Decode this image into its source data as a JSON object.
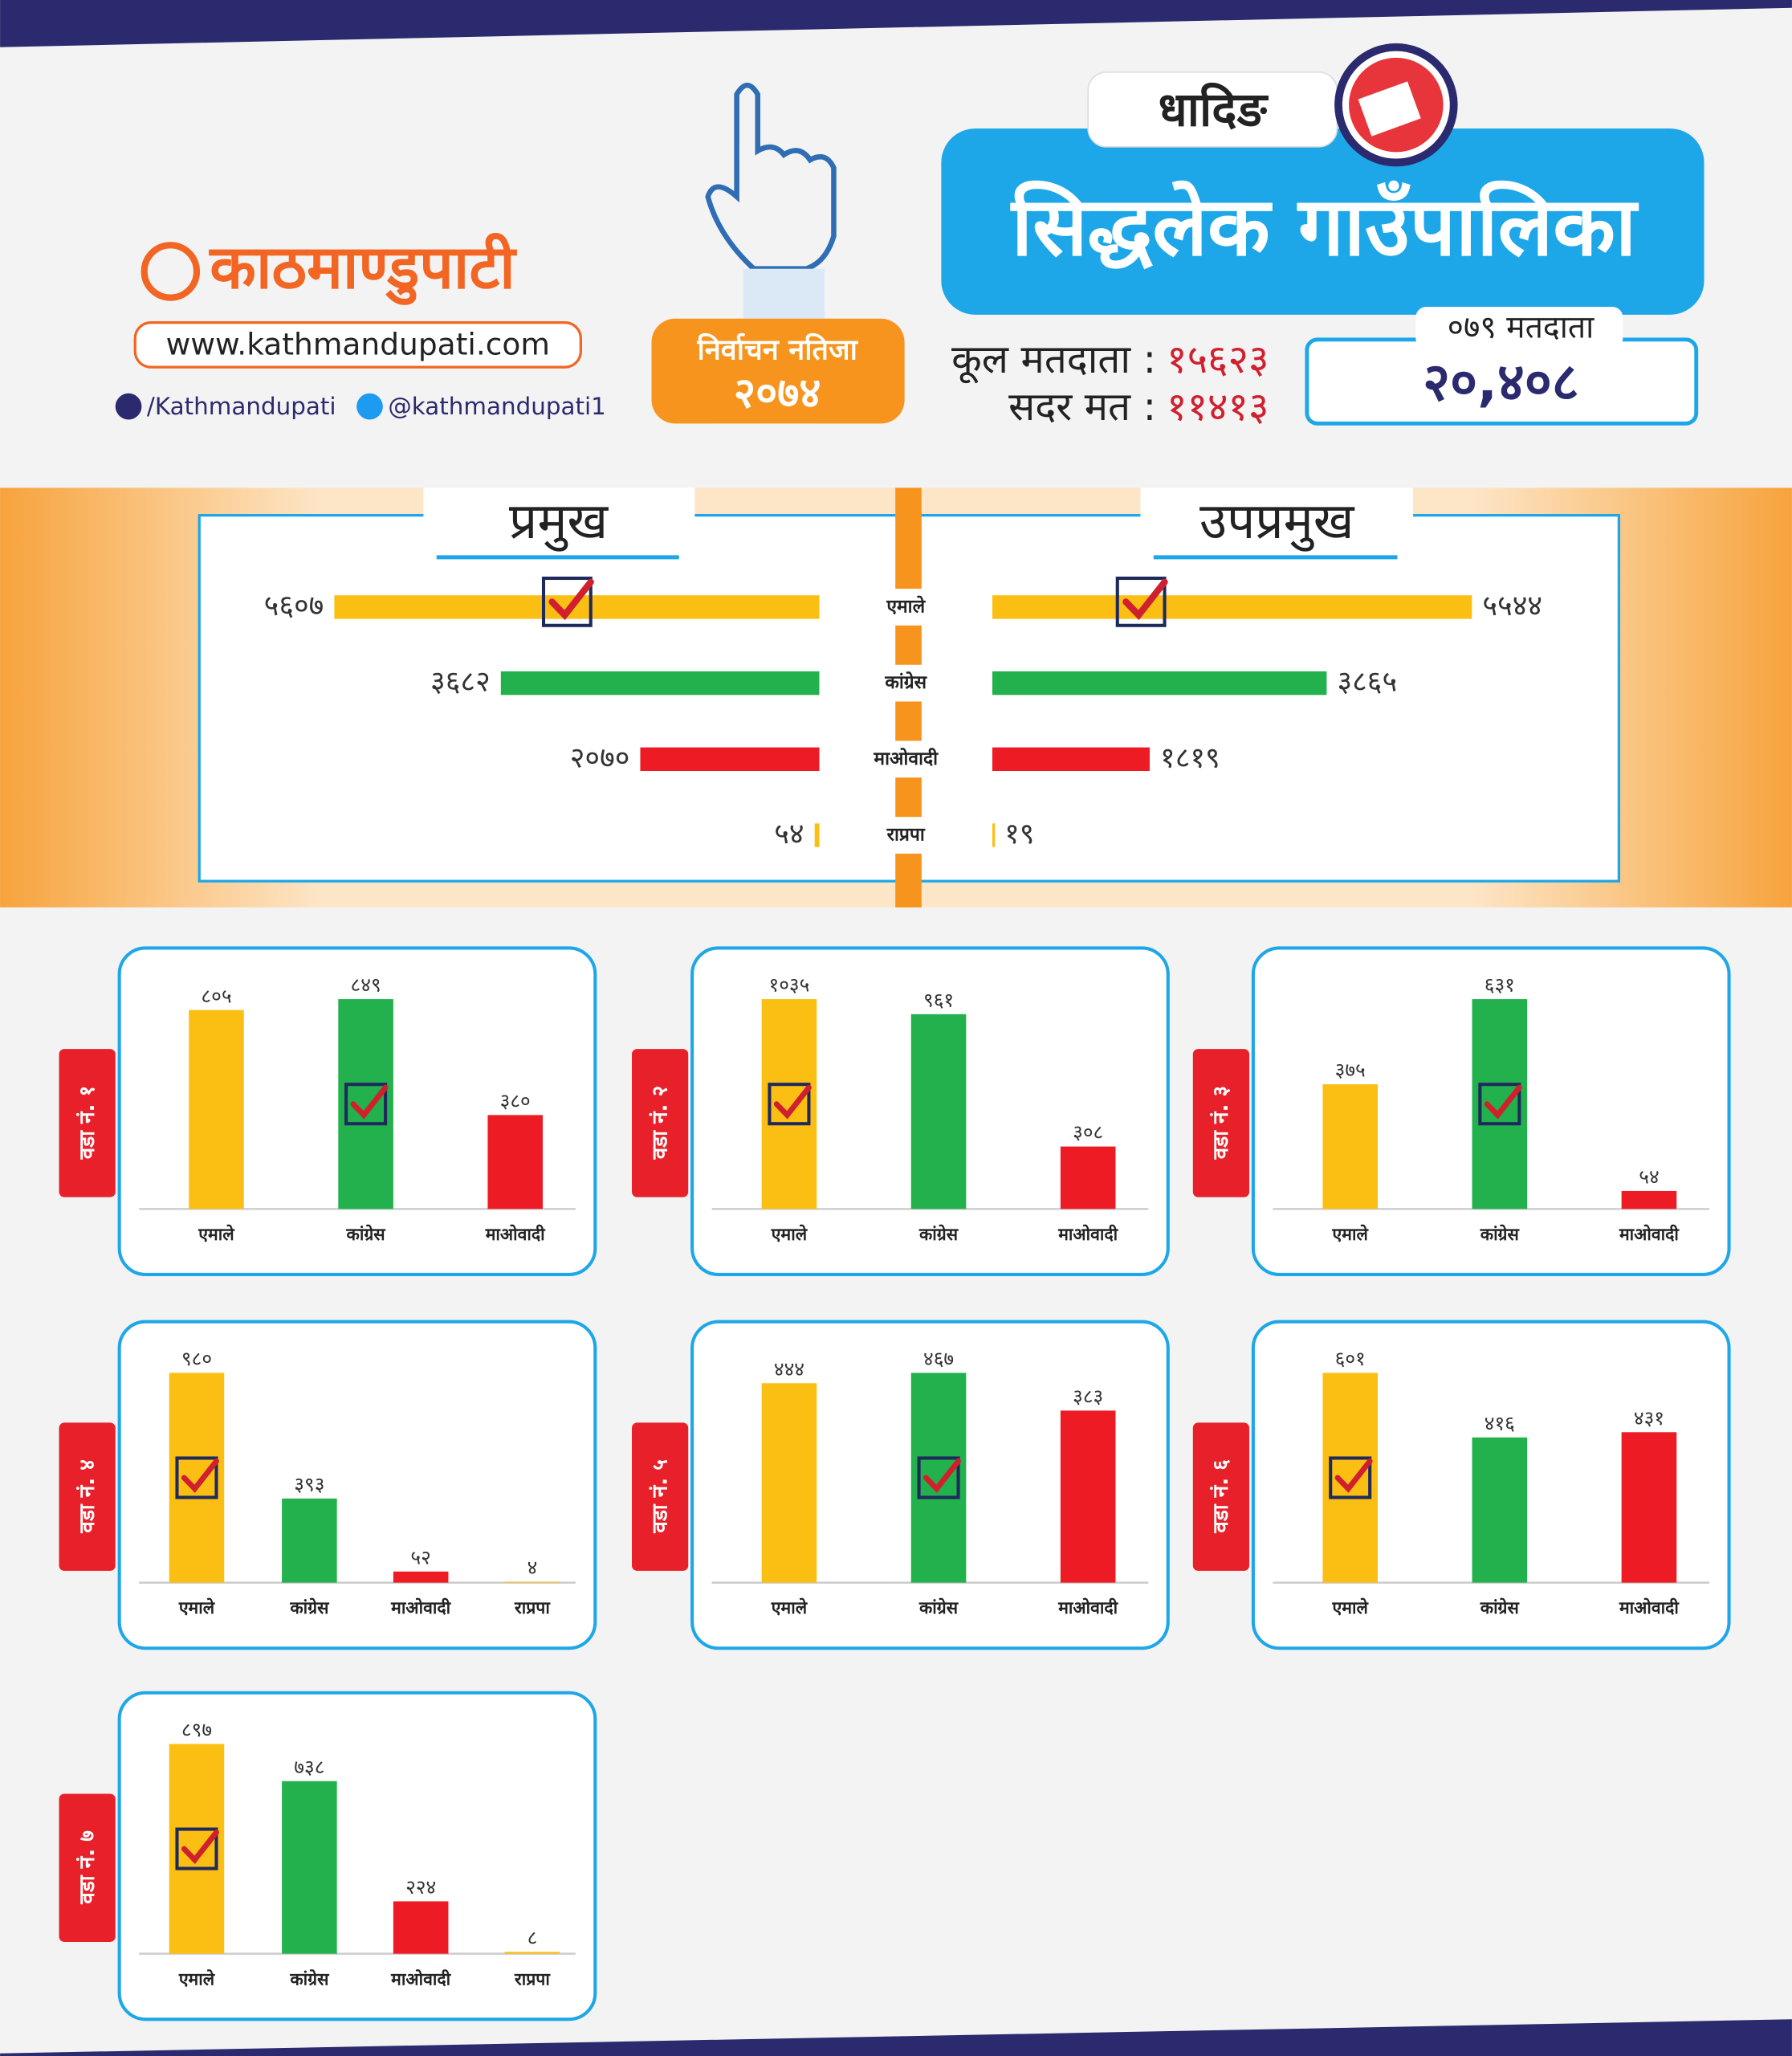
{
  "header": {
    "logo": "काठमाण्डुपाटी",
    "website": "www.kathmandupati.com",
    "facebook": "/Kathmandupati",
    "twitter": "@kathmandupati1",
    "badge_title": "निर्वाचन नतिजा",
    "badge_year": "२०७४",
    "district": "धादिङ",
    "municipality": "सिद्धलेक गाउँपालिका",
    "total_voters_label": "कूल मतदाता :",
    "total_voters": "१५६२३",
    "valid_votes_label": "सदर मत :",
    "valid_votes": "११४१३",
    "voters_079_label": "०७९ मतदाता",
    "voters_079": "२०,४०८"
  },
  "chart_data": [
    {
      "type": "hbar",
      "categories": [
        "एमाले",
        "कांग्रेस",
        "माओवादी",
        "राप्रपा"
      ],
      "colors": [
        "#fbbf14",
        "#22b14c",
        "#ed1c24",
        "#fbbf14"
      ],
      "series": [
        {
          "name": "प्रमुख",
          "values": [
            5607,
            3682,
            2070,
            54
          ],
          "value_labels": [
            "५६०७",
            "३६८२",
            "२०७०",
            "५४"
          ]
        },
        {
          "name": "उपप्रमुख",
          "values": [
            5544,
            3865,
            1819,
            19
          ],
          "value_labels": [
            "५५४४",
            "३८६५",
            "१८१९",
            "१९"
          ]
        }
      ]
    },
    {
      "type": "bar",
      "title": "वडा नं. १",
      "categories": [
        "एमाले",
        "कांग्रेस",
        "माओवादी"
      ],
      "colors": [
        "#fbbf14",
        "#22b14c",
        "#ed1c24"
      ],
      "values": [
        805,
        849,
        380
      ],
      "value_labels": [
        "८०५",
        "८४९",
        "३८०"
      ]
    },
    {
      "type": "bar",
      "title": "वडा नं. २",
      "categories": [
        "एमाले",
        "कांग्रेस",
        "माओवादी"
      ],
      "colors": [
        "#fbbf14",
        "#22b14c",
        "#ed1c24"
      ],
      "values": [
        1035,
        961,
        308
      ],
      "value_labels": [
        "१०३५",
        "९६१",
        "३०८"
      ]
    },
    {
      "type": "bar",
      "title": "वडा नं. ३",
      "categories": [
        "एमाले",
        "कांग्रेस",
        "माओवादी"
      ],
      "colors": [
        "#fbbf14",
        "#22b14c",
        "#ed1c24"
      ],
      "values": [
        375,
        631,
        54
      ],
      "value_labels": [
        "३७५",
        "६३१",
        "५४"
      ]
    },
    {
      "type": "bar",
      "title": "वडा नं. ४",
      "categories": [
        "एमाले",
        "कांग्रेस",
        "माओवादी",
        "राप्रपा"
      ],
      "colors": [
        "#fbbf14",
        "#22b14c",
        "#ed1c24",
        "#fbbf14"
      ],
      "values": [
        980,
        393,
        52,
        4
      ],
      "value_labels": [
        "९८०",
        "३९३",
        "५२",
        "४"
      ]
    },
    {
      "type": "bar",
      "title": "वडा नं. ५",
      "categories": [
        "एमाले",
        "कांग्रेस",
        "माओवादी"
      ],
      "colors": [
        "#fbbf14",
        "#22b14c",
        "#ed1c24"
      ],
      "values": [
        444,
        467,
        383
      ],
      "value_labels": [
        "४४४",
        "४६७",
        "३८३"
      ]
    },
    {
      "type": "bar",
      "title": "वडा नं. ६",
      "categories": [
        "एमाले",
        "कांग्रेस",
        "माओवादी"
      ],
      "colors": [
        "#fbbf14",
        "#22b14c",
        "#ed1c24"
      ],
      "values": [
        601,
        416,
        431
      ],
      "value_labels": [
        "६०१",
        "४१६",
        "४३१"
      ]
    },
    {
      "type": "bar",
      "title": "वडा नं. ७",
      "categories": [
        "एमाले",
        "कांग्रेस",
        "माओवादी",
        "राप्रपा"
      ],
      "colors": [
        "#fbbf14",
        "#22b14c",
        "#ed1c24",
        "#fbbf14"
      ],
      "values": [
        897,
        738,
        224,
        8
      ],
      "value_labels": [
        "८९७",
        "७३८",
        "२२४",
        "८"
      ]
    }
  ]
}
